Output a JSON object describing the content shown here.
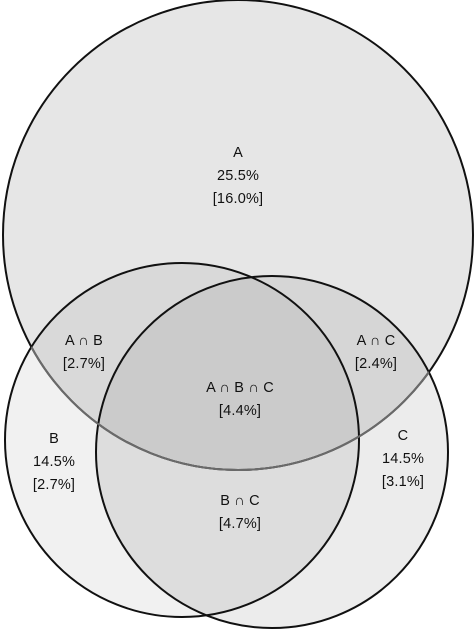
{
  "venn": {
    "sets": {
      "A": {
        "name": "A",
        "share": "25.5%",
        "bracket": "[16.0%]"
      },
      "B": {
        "name": "B",
        "share": "14.5%",
        "bracket": "[2.7%]"
      },
      "C": {
        "name": "C",
        "share": "14.5%",
        "bracket": "[3.1%]"
      }
    },
    "intersections": {
      "AB": {
        "name": "A ∩ B",
        "bracket": "[2.7%]"
      },
      "AC": {
        "name": "A ∩ C",
        "bracket": "[2.4%]"
      },
      "BC": {
        "name": "B ∩ C",
        "bracket": "[4.7%]"
      },
      "ABC": {
        "name": "A ∩ B ∩ C",
        "bracket": "[4.4%]"
      }
    },
    "colors": {
      "A_fill": "#e6e6e6",
      "B_fill": "#f1f1f1",
      "C_fill": "#ececec",
      "outline": "#111111"
    }
  }
}
